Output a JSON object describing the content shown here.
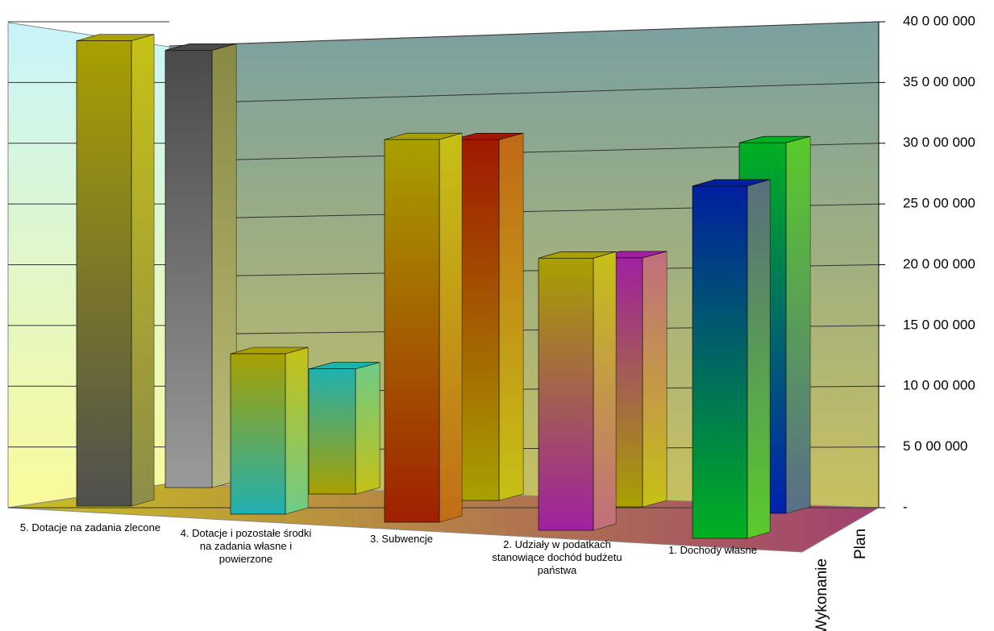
{
  "chart_data": {
    "type": "bar3d",
    "categories": [
      "5. Dotacje na zadania zlecone",
      "4. Dotacje i pozostałe środki na zadania własne i powierzone",
      "3. Subwencje",
      "2. Udziały w podatkach stanowiące dochód budżetu państwa",
      "1. Dochody własne"
    ],
    "series": [
      {
        "name": "Plan",
        "colors": [
          "#4a4a4a",
          "#20b0b0",
          "#a01800",
          "#a020a0",
          "#00b020"
        ],
        "colors_bottom": [
          "#9a9a9a",
          "#a8a000",
          "#a8a000",
          "#a8a000",
          "#0020b0"
        ],
        "values": [
          36000000,
          10300000,
          29700000,
          20500000,
          30500000
        ]
      },
      {
        "name": "Wykonanie",
        "colors": [
          "#a8a000",
          "#a8a000",
          "#a8a000",
          "#a8a000",
          "#0020a0"
        ],
        "colors_bottom": [
          "#505050",
          "#20b0b0",
          "#a02000",
          "#a020a0",
          "#00b020"
        ],
        "values": [
          38300000,
          13200000,
          31500000,
          22400000,
          29000000
        ]
      }
    ],
    "ylim": [
      0,
      40000000
    ],
    "yticks": [
      {
        "value": 0,
        "label": "-"
      },
      {
        "value": 5000000,
        "label": "5 0 00 000"
      },
      {
        "value": 10000000,
        "label": "10 0 00 000"
      },
      {
        "value": 15000000,
        "label": "15 0 00 000"
      },
      {
        "value": 20000000,
        "label": "20 0 00 000"
      },
      {
        "value": 25000000,
        "label": "25 0 00 000"
      },
      {
        "value": 30000000,
        "label": "30 0 00 000"
      },
      {
        "value": 35000000,
        "label": "35 0 00 000"
      },
      {
        "value": 40000000,
        "label": "40 0 00 000"
      }
    ],
    "grid": true
  }
}
